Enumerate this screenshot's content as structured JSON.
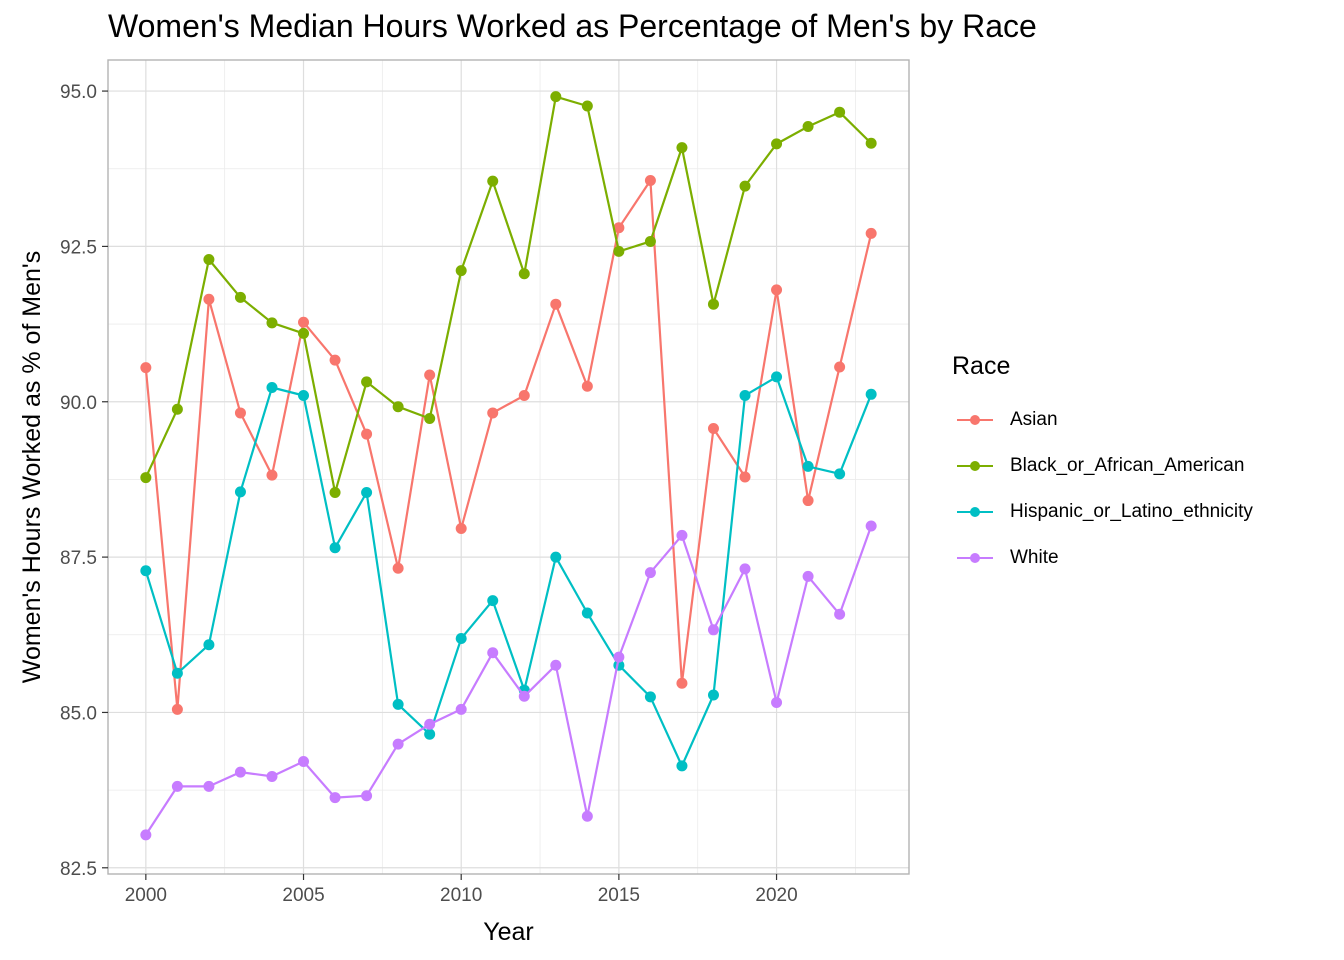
{
  "chart_data": {
    "type": "line",
    "title": "Women's Median Hours Worked as Percentage of Men's by Race",
    "xlabel": "Year",
    "ylabel": "Women's Hours Worked as % of Men's",
    "xlim": [
      1998.8,
      2024.2
    ],
    "ylim": [
      82.4,
      95.5
    ],
    "xticks": [
      2000,
      2005,
      2010,
      2015,
      2020
    ],
    "xtick_labels": [
      "2000",
      "2005",
      "2010",
      "2015",
      "2020"
    ],
    "yticks": [
      82.5,
      85.0,
      87.5,
      90.0,
      92.5,
      95.0
    ],
    "ytick_labels": [
      "82.5",
      "85.0",
      "87.5",
      "90.0",
      "92.5",
      "95.0"
    ],
    "grid": true,
    "legend_title": "Race",
    "legend_position": "right",
    "x": [
      2000,
      2001,
      2002,
      2003,
      2004,
      2005,
      2006,
      2007,
      2008,
      2009,
      2010,
      2011,
      2012,
      2013,
      2014,
      2015,
      2016,
      2017,
      2018,
      2019,
      2020,
      2021,
      2022,
      2023
    ],
    "series": [
      {
        "name": "Asian",
        "color": "#F8766D",
        "values": [
          90.55,
          85.05,
          91.65,
          89.82,
          88.82,
          91.28,
          90.67,
          89.48,
          87.32,
          90.43,
          87.96,
          89.82,
          90.1,
          91.57,
          90.25,
          92.8,
          93.56,
          85.47,
          89.57,
          88.79,
          91.8,
          88.41,
          90.56,
          92.71
        ]
      },
      {
        "name": "Black_or_African_American",
        "color": "#7CAE00",
        "values": [
          88.78,
          89.88,
          92.29,
          91.68,
          91.27,
          91.1,
          88.54,
          90.32,
          89.92,
          89.73,
          92.11,
          93.55,
          92.06,
          94.91,
          94.76,
          92.42,
          92.58,
          94.09,
          91.57,
          93.47,
          94.15,
          94.43,
          94.66,
          94.16
        ]
      },
      {
        "name": "Hispanic_or_Latino_ethnicity",
        "color": "#00BFC4",
        "values": [
          87.28,
          85.63,
          86.09,
          88.55,
          90.23,
          90.1,
          87.65,
          88.54,
          85.13,
          84.65,
          86.19,
          86.8,
          85.36,
          87.5,
          86.6,
          85.76,
          85.25,
          84.14,
          85.28,
          90.1,
          90.4,
          88.96,
          88.84,
          90.12
        ]
      },
      {
        "name": "White",
        "color": "#C77CFF",
        "values": [
          83.03,
          83.81,
          83.81,
          84.04,
          83.97,
          84.21,
          83.63,
          83.66,
          84.49,
          84.81,
          85.05,
          85.96,
          85.26,
          85.76,
          83.33,
          85.89,
          87.25,
          87.85,
          86.33,
          87.31,
          85.16,
          87.19,
          86.58,
          88.0
        ]
      }
    ]
  }
}
